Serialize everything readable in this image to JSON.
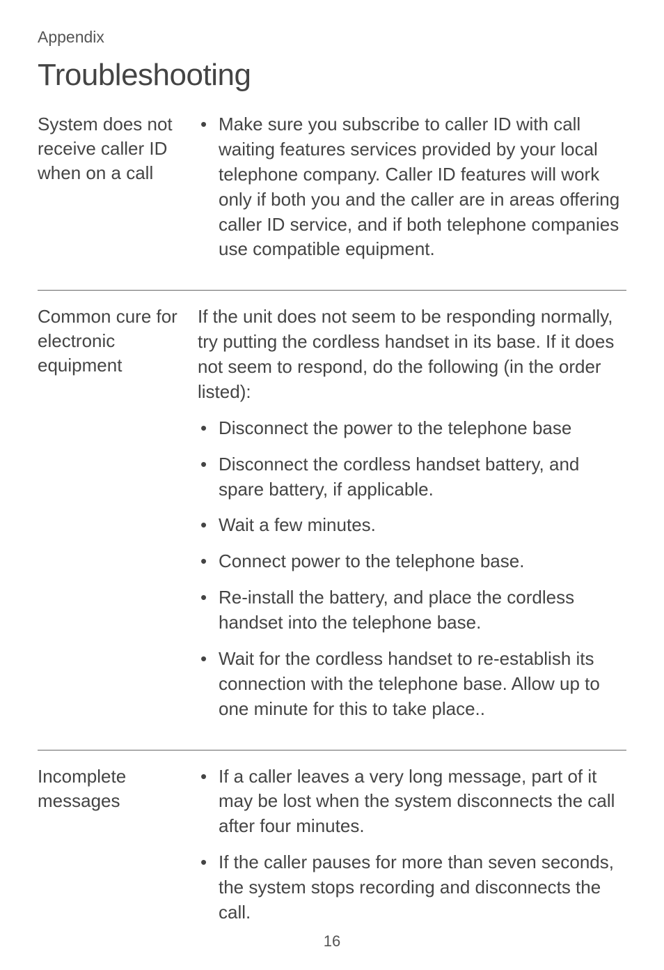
{
  "section_label": "Appendix",
  "title": "Troubleshooting",
  "page_number": "16",
  "sections": [
    {
      "heading": "System does not receive caller ID when on a call",
      "bullets": [
        "Make sure you subscribe to caller ID with call waiting features services provided by your local telephone company. Caller ID features will work only if both you and the caller are in areas offering caller ID service, and if both telephone companies use compatible equipment."
      ]
    },
    {
      "heading": "Common cure for electronic equipment",
      "intro": "If the unit does not seem to be responding normally, try putting the cordless handset in its base. If it does not seem to respond, do the following (in the order listed):",
      "bullets": [
        "Disconnect the power to the telephone base",
        "Disconnect the cordless handset battery, and spare battery, if applicable.",
        "Wait a few minutes.",
        "Connect power to the telephone base.",
        "Re-install the battery, and place the cordless handset into the telephone base.",
        "Wait for the cordless handset to re-establish its connection with the telephone base. Allow up to one minute for this to take place.."
      ]
    },
    {
      "heading": "Incomplete messages",
      "bullets": [
        "If a caller leaves a very long message, part of it may be lost when the system disconnects the call after four minutes.",
        "If the caller pauses for more than seven seconds, the system stops recording and disconnects the call."
      ]
    }
  ]
}
